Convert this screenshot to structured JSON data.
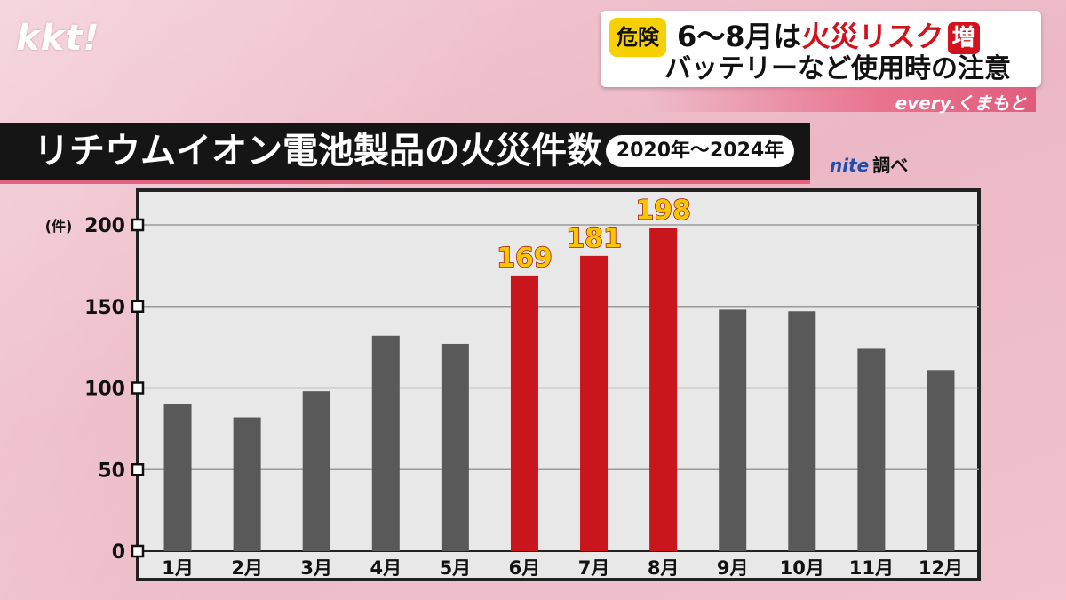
{
  "broadcast": {
    "logo": "kkt!",
    "danger_label": "危険",
    "headline_prefix": "6〜8月は",
    "headline_highlight": "火災リスク",
    "headline_badge": "増",
    "headline_line2": "バッテリーなど使用時の注意",
    "program": "every.くまもと"
  },
  "chart_title": "リチウムイオン電池製品の火災件数",
  "period": "2020年〜2024年",
  "source_brand": "nite",
  "source_suffix": "調べ",
  "colors": {
    "normal_bar": "#595959",
    "highlight_bar": "#c8161c",
    "highlight_label": "#f7c600",
    "title_bar": "#151515",
    "accent": "#d2121d"
  },
  "chart_data": {
    "type": "bar",
    "title": "リチウムイオン電池製品の火災件数",
    "subtitle": "2020年〜2024年",
    "ylabel": "(件)",
    "xlabel": "",
    "ylim": [
      0,
      200
    ],
    "yticks": [
      0,
      50,
      100,
      150,
      200
    ],
    "grid": true,
    "categories": [
      "1月",
      "2月",
      "3月",
      "4月",
      "5月",
      "6月",
      "7月",
      "8月",
      "9月",
      "10月",
      "11月",
      "12月"
    ],
    "values": [
      90,
      82,
      98,
      132,
      127,
      169,
      181,
      198,
      148,
      147,
      124,
      111
    ],
    "highlighted": [
      false,
      false,
      false,
      false,
      false,
      true,
      true,
      true,
      false,
      false,
      false,
      false
    ],
    "data_labels": [
      "",
      "",
      "",
      "",
      "",
      "169",
      "181",
      "198",
      "",
      "",
      "",
      ""
    ]
  }
}
